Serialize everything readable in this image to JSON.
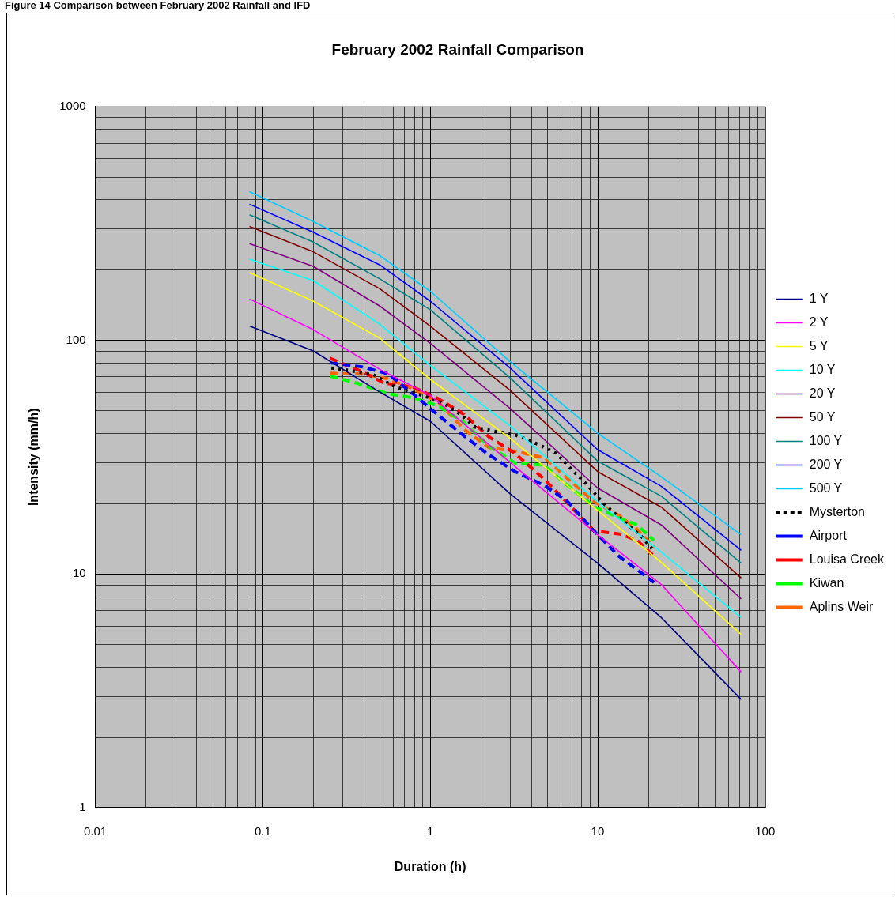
{
  "chart_data": {
    "type": "line",
    "title": "February 2002 Rainfall Comparison",
    "xlabel": "Duration (h)",
    "ylabel": "Intensity (mm/h)",
    "annotations": [
      "Figure 14 Comparison between February 2002 Rainfall and IFD"
    ],
    "x": [
      0.0833,
      0.2,
      0.5,
      1,
      3,
      10,
      24,
      72
    ],
    "series": [
      {
        "name": "1 Y",
        "color": "#000080",
        "values": [
          115,
          90,
          60,
          45,
          22,
          11.1,
          6.5,
          2.9
        ]
      },
      {
        "name": "2 Y",
        "color": "#ff00ff",
        "values": [
          150,
          111,
          75,
          58,
          30,
          14.7,
          9.0,
          3.8
        ]
      },
      {
        "name": "5 Y",
        "color": "#ffff00",
        "values": [
          195,
          147,
          102,
          68,
          38,
          18.7,
          11.2,
          5.5
        ]
      },
      {
        "name": "10 Y",
        "color": "#00ffff",
        "values": [
          222,
          180,
          117,
          78,
          43,
          20.3,
          12.4,
          6.5
        ]
      },
      {
        "name": "20 Y",
        "color": "#800080",
        "values": [
          259,
          207,
          140,
          97,
          51,
          23.3,
          16.2,
          7.8
        ]
      },
      {
        "name": "50 Y",
        "color": "#800000",
        "values": [
          307,
          239,
          166,
          115,
          61,
          27.4,
          19.3,
          9.6
        ]
      },
      {
        "name": "100 Y",
        "color": "#008080",
        "values": [
          344,
          263,
          183,
          135,
          69,
          30.4,
          21.5,
          11.1
        ]
      },
      {
        "name": "200 Y",
        "color": "#0000ff",
        "values": [
          382,
          290,
          210,
          147,
          76,
          34,
          23.7,
          12.6
        ]
      },
      {
        "name": "500 Y",
        "color": "#00ccff",
        "values": [
          432,
          322,
          230,
          162,
          81,
          40,
          26,
          14.7
        ]
      },
      {
        "name": "Mysterton",
        "color": "#000000",
        "line_style": "dotted",
        "x": [
          0.257,
          0.313,
          0.458,
          0.622,
          0.94,
          1.26,
          1.51,
          1.87,
          2.49,
          3.04,
          3.71,
          4.61,
          5.62,
          7.23,
          8.67,
          11.0,
          14.9,
          18.2,
          21.7
        ],
        "values": [
          76,
          74.6,
          71.2,
          63,
          57.4,
          52.5,
          48.2,
          42.3,
          40.6,
          39.9,
          37.8,
          35.3,
          32.9,
          27.3,
          24.0,
          19.8,
          16.4,
          14.5,
          12.5
        ]
      },
      {
        "name": "Airport",
        "color": "#0000ff",
        "line_style": "dashed",
        "x": [
          0.252,
          0.396,
          0.559,
          0.8,
          1.11,
          1.59,
          2.2,
          3.21,
          4.86,
          6.61,
          9.31,
          13.4,
          21.7
        ],
        "values": [
          80,
          76.8,
          71.8,
          58.5,
          47.9,
          39.0,
          32.6,
          27.4,
          23.8,
          20.4,
          15.5,
          11.9,
          9.2
        ]
      },
      {
        "name": "Louisa Creek",
        "color": "#ff0000",
        "line_style": "dashed",
        "x": [
          0.252,
          0.396,
          0.528,
          0.8,
          1.13,
          1.59,
          2.24,
          3.21,
          4.86,
          6.61,
          9.48,
          13.6,
          17.2,
          21.7
        ],
        "values": [
          83.7,
          73.1,
          65.7,
          62.8,
          55.9,
          48.2,
          38.6,
          32.8,
          25.2,
          20.1,
          15.3,
          14.8,
          13.9,
          11.9
        ]
      },
      {
        "name": "Kiwan",
        "color": "#00ff00",
        "line_style": "dashed",
        "x": [
          0.252,
          0.369,
          0.559,
          0.8,
          1.13,
          1.59,
          2.24,
          3.21,
          4.78,
          6.61,
          9.65,
          13.4,
          17.2,
          21.7
        ],
        "values": [
          70.3,
          65.3,
          59.0,
          56.6,
          52.2,
          44.4,
          35.3,
          29.8,
          29.2,
          23.9,
          19.3,
          17.4,
          16.2,
          13.9
        ]
      },
      {
        "name": "Aplins Weir",
        "color": "#ff6600",
        "line_style": "dashed",
        "x": [
          0.252,
          0.396,
          0.559,
          0.8,
          1.13,
          1.59,
          2.24,
          3.21,
          4.86,
          6.61,
          9.48,
          13.4,
          16.9,
          21.7
        ],
        "values": [
          72.2,
          71.6,
          68.4,
          61.7,
          53.9,
          41.6,
          34.7,
          33.5,
          31.3,
          25.6,
          20.4,
          17.8,
          15.7,
          13.0
        ]
      }
    ],
    "log": "xy",
    "xlim": [
      0.01,
      100
    ],
    "ylim": [
      1,
      1000
    ],
    "xticks": [
      0.01,
      0.1,
      1,
      10,
      100
    ],
    "yticks": [
      1,
      10,
      100,
      1000
    ],
    "grid": true,
    "legend": "right",
    "marker": "none",
    "line_style": "solid"
  }
}
